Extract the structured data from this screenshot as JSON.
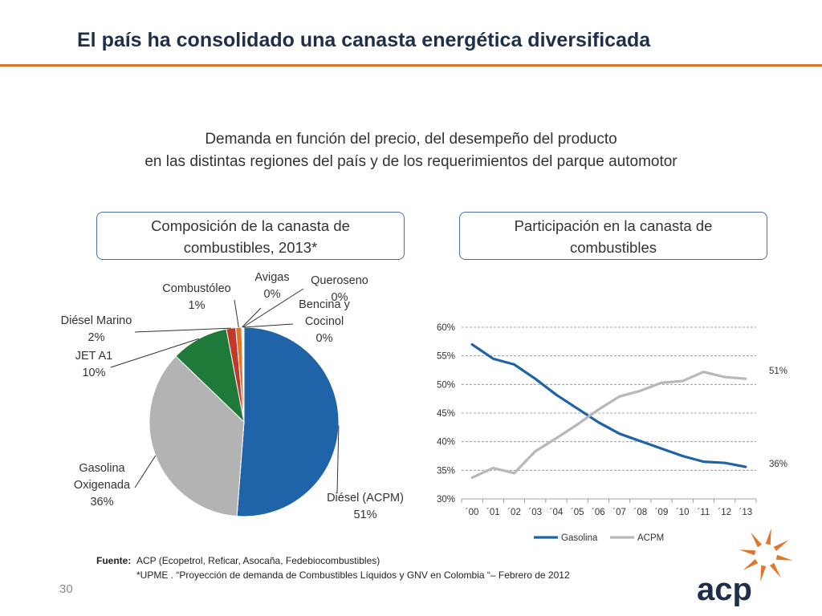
{
  "slide": {
    "title": "El país ha consolidado una canasta energética diversificada",
    "subtitle_line1": "Demanda en función del precio, del desempeño del producto",
    "subtitle_line2": "en las distintas regiones del país y de los requerimientos del parque automotor",
    "page_number": "30"
  },
  "panels": {
    "left_line1": "Composición de la canasta de",
    "left_line2": "combustibles, 2013*",
    "right_line1": "Participación en la canasta de",
    "right_line2": "combustibles"
  },
  "source": {
    "label": "Fuente:",
    "line1": "ACP (Ecopetrol, Reficar, Asocaña, Fedebiocombustibles)",
    "line2": "*UPME . “Proyección de demanda de Combustibles Líquidos y GNV en Colombia “– Febrero de 2012"
  },
  "logo": {
    "text": "acp",
    "color": "#1f2f4a",
    "accent": "#e0762b"
  },
  "chart_data": [
    {
      "type": "pie",
      "title": "",
      "slices": [
        {
          "label": "Diésel (ACPM)",
          "value_label": "51%",
          "value": 51.2,
          "color": "#1f63a8"
        },
        {
          "label": "Gasolina Oxigenada",
          "value_label": "36%",
          "value": 36.0,
          "color": "#b3b3b3"
        },
        {
          "label": "JET A1",
          "value_label": "10%",
          "value": 9.8,
          "color": "#1f7a3a"
        },
        {
          "label": "Diésel Marino",
          "value_label": "2%",
          "value": 1.6,
          "color": "#c0392b"
        },
        {
          "label": "Combustóleo",
          "value_label": "1%",
          "value": 1.0,
          "color": "#e0762b"
        },
        {
          "label": "Avigas",
          "value_label": "0%",
          "value": 0.15,
          "color": "#8e2a1e"
        },
        {
          "label": "Queroseno",
          "value_label": "0%",
          "value": 0.15,
          "color": "#6b8e3a"
        },
        {
          "label": "Bencina y Cocinol",
          "value_label": "0%",
          "value": 0.1,
          "color": "#4a6fa5"
        }
      ]
    },
    {
      "type": "line",
      "title": "",
      "categories": [
        "´00",
        "´01",
        "´02",
        "´03",
        "´04",
        "´05",
        "´06",
        "´07",
        "´08",
        "´09",
        "´10",
        "´11",
        "´12",
        "´13"
      ],
      "ylim": [
        30,
        60
      ],
      "yticks": [
        "30%",
        "35%",
        "40%",
        "45%",
        "50%",
        "55%",
        "60%"
      ],
      "grid": true,
      "legend": "bottom",
      "series": [
        {
          "name": "Gasolina",
          "color": "#1f63a8",
          "values": [
            57.0,
            54.5,
            53.5,
            51.0,
            48.2,
            45.8,
            43.4,
            41.4,
            40.1,
            38.8,
            37.5,
            36.5,
            36.3,
            35.6
          ],
          "end_label": "36%"
        },
        {
          "name": "ACPM",
          "color": "#b8b8b8",
          "values": [
            33.7,
            35.4,
            34.5,
            38.3,
            40.6,
            43.0,
            45.6,
            47.9,
            48.9,
            50.3,
            50.6,
            52.2,
            51.3,
            51.0
          ],
          "end_label": "51%"
        }
      ]
    }
  ]
}
